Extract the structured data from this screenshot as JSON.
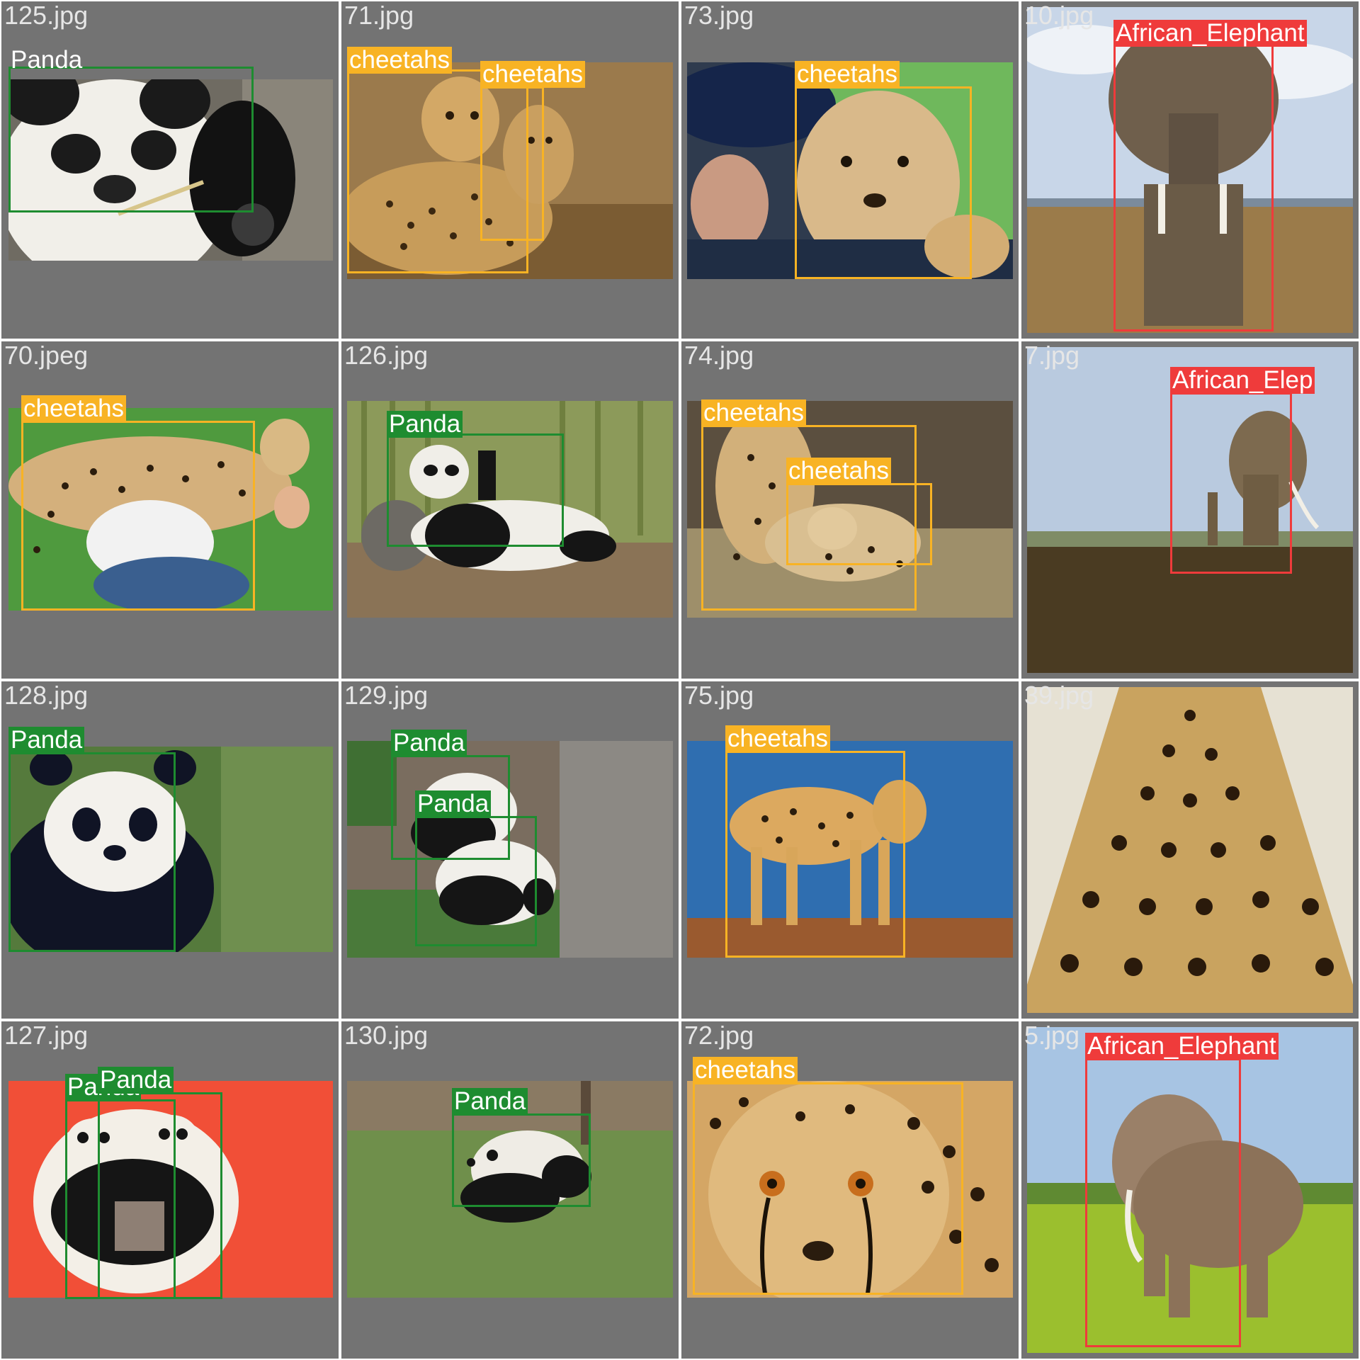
{
  "colors": {
    "Panda": "#1e8c30",
    "cheetahs": "#f8b324",
    "African_Elephant": "#ef3b3b",
    "tile_background": "#737373",
    "filename_text": "#e6e6e6"
  },
  "tiles": [
    {
      "filename": "125.jpg",
      "subject": "panda-closeup",
      "detections": [
        {
          "label": "Panda"
        }
      ]
    },
    {
      "filename": "71.jpg",
      "subject": "cheetah-mother-cub",
      "detections": [
        {
          "label": "cheetahs"
        },
        {
          "label": "cheetahs"
        }
      ]
    },
    {
      "filename": "73.jpg",
      "subject": "cheetah-with-man",
      "detections": [
        {
          "label": "cheetahs"
        }
      ]
    },
    {
      "filename": "10.jpg",
      "subject": "elephant-front",
      "detections": [
        {
          "label": "African_Elephant"
        }
      ]
    },
    {
      "filename": "70.jpeg",
      "subject": "cheetah-hugging-man",
      "detections": [
        {
          "label": "cheetahs"
        }
      ]
    },
    {
      "filename": "126.jpg",
      "subject": "panda-bamboo",
      "detections": [
        {
          "label": "Panda"
        }
      ]
    },
    {
      "filename": "74.jpg",
      "subject": "cheetah-stretching",
      "detections": [
        {
          "label": "cheetahs"
        },
        {
          "label": "cheetahs"
        }
      ]
    },
    {
      "filename": "7.jpg",
      "subject": "elephant-plain",
      "detections": [
        {
          "label": "African_Elep"
        }
      ]
    },
    {
      "filename": "128.jpg",
      "subject": "panda-portrait",
      "detections": [
        {
          "label": "Panda"
        }
      ]
    },
    {
      "filename": "129.jpg",
      "subject": "two-pandas-rocks",
      "detections": [
        {
          "label": "Panda"
        },
        {
          "label": "Panda"
        }
      ]
    },
    {
      "filename": "75.jpg",
      "subject": "cheetah-standing-sky",
      "detections": [
        {
          "label": "cheetahs"
        }
      ]
    },
    {
      "filename": "39.jpg",
      "subject": "leopard-skin",
      "detections": []
    },
    {
      "filename": "127.jpg",
      "subject": "two-pandas-red",
      "detections": [
        {
          "label": "Panda"
        },
        {
          "label": "Panda"
        }
      ]
    },
    {
      "filename": "130.jpg",
      "subject": "panda-grass",
      "detections": [
        {
          "label": "Panda"
        }
      ]
    },
    {
      "filename": "72.jpg",
      "subject": "cheetah-face",
      "detections": [
        {
          "label": "cheetahs"
        }
      ]
    },
    {
      "filename": "5.jpg",
      "subject": "elephant-grass",
      "detections": [
        {
          "label": "African_Elephant"
        }
      ]
    }
  ]
}
